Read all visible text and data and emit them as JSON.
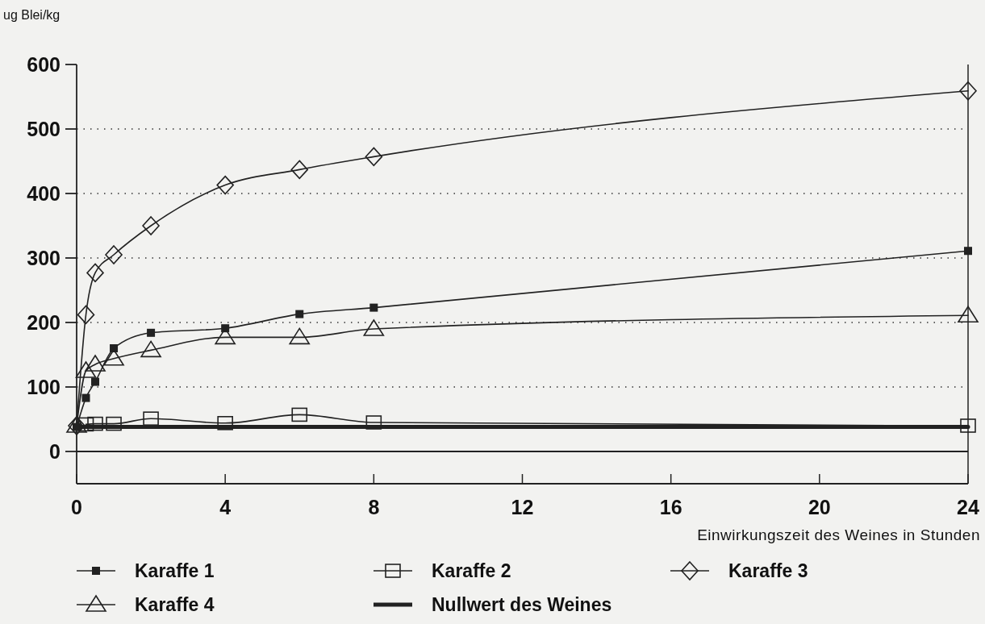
{
  "chart_data": {
    "type": "line",
    "xlabel": "Einwirkungszeit des Weines in Stunden",
    "ylabel": "ug Blei/kg",
    "x": [
      0,
      0.25,
      0.5,
      1,
      2,
      4,
      6,
      8,
      24
    ],
    "series": [
      {
        "name": "Karaffe 1",
        "color": "#222222",
        "marker": "square",
        "values": [
          38,
          83,
          108,
          160,
          184,
          191,
          213,
          223,
          311
        ]
      },
      {
        "name": "Karaffe 2",
        "color": "#222222",
        "marker": "square-open",
        "values": [
          null,
          42,
          43,
          43,
          51,
          44,
          57,
          45,
          40
        ]
      },
      {
        "name": "Karaffe 3",
        "color": "#222222",
        "marker": "diamond",
        "values": [
          40,
          212,
          277,
          305,
          350,
          413,
          437,
          457,
          559
        ]
      },
      {
        "name": "Karaffe 4",
        "color": "#222222",
        "marker": "triangle",
        "values": [
          40,
          125,
          135,
          144,
          157,
          177,
          177,
          190,
          211
        ]
      },
      {
        "name": "Nullwert des Weines",
        "color": "#222222",
        "marker": "none",
        "values": [
          38,
          38,
          38,
          38,
          38,
          38,
          38,
          38,
          38
        ]
      }
    ],
    "xlim": [
      0,
      24
    ],
    "xticks": [
      0,
      4,
      8,
      12,
      16,
      20,
      24
    ],
    "ylim": [
      -50,
      600
    ],
    "yticks": [
      0,
      100,
      200,
      300,
      400,
      500,
      600
    ],
    "grid": "y",
    "legend": "bottom",
    "ref_lines": [
      {
        "axis": "y",
        "value": 0,
        "color": "#222222"
      }
    ]
  }
}
